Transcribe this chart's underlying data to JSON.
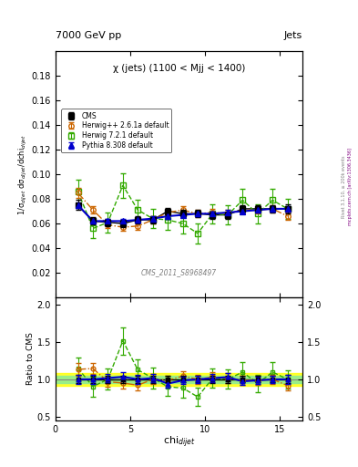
{
  "title_top": "7000 GeV pp",
  "title_right": "Jets",
  "plot_title": "χ (jets) (1100 < Mjj < 1400)",
  "watermark": "CMS_2011_S8968497",
  "right_label": "mcplots.cern.ch [arXiv:1306.3436]",
  "rivet_label": "Rivet 3.1.10, ≥ 200k events",
  "ylabel_main": "1/σ$_{dijet}$ dσ$_{dijet}$/dchi$_{dijet}$",
  "ylabel_ratio": "Ratio to CMS",
  "xlabel": "chi$_{dijet}$",
  "xlim": [
    0,
    16.5
  ],
  "ylim_main": [
    0.0,
    0.2
  ],
  "ylim_ratio": [
    0.45,
    2.1
  ],
  "yticks_main": [
    0.02,
    0.04,
    0.06,
    0.08,
    0.1,
    0.12,
    0.14,
    0.16,
    0.18
  ],
  "yticks_ratio": [
    0.5,
    1.0,
    1.5,
    2.0
  ],
  "cms_x": [
    1.5,
    2.5,
    3.5,
    4.5,
    5.5,
    6.5,
    7.5,
    8.5,
    9.5,
    10.5,
    11.5,
    12.5,
    13.5,
    14.5,
    15.5
  ],
  "cms_y": [
    0.075,
    0.062,
    0.061,
    0.06,
    0.063,
    0.063,
    0.07,
    0.068,
    0.068,
    0.067,
    0.067,
    0.072,
    0.072,
    0.072,
    0.072
  ],
  "cms_yerr": [
    0.004,
    0.003,
    0.003,
    0.003,
    0.003,
    0.003,
    0.003,
    0.003,
    0.003,
    0.003,
    0.003,
    0.003,
    0.003,
    0.003,
    0.004
  ],
  "herwig_pp_x": [
    1.5,
    2.5,
    3.5,
    4.5,
    5.5,
    6.5,
    7.5,
    8.5,
    9.5,
    10.5,
    11.5,
    12.5,
    13.5,
    14.5,
    15.5
  ],
  "herwig_pp_y": [
    0.085,
    0.071,
    0.059,
    0.057,
    0.058,
    0.063,
    0.069,
    0.071,
    0.068,
    0.069,
    0.068,
    0.071,
    0.071,
    0.072,
    0.066
  ],
  "herwig_pp_yerr": [
    0.004,
    0.003,
    0.003,
    0.003,
    0.003,
    0.003,
    0.003,
    0.003,
    0.003,
    0.003,
    0.003,
    0.003,
    0.003,
    0.003,
    0.003
  ],
  "herwig72_x": [
    1.5,
    2.5,
    3.5,
    4.5,
    5.5,
    6.5,
    7.5,
    8.5,
    9.5,
    10.5,
    11.5,
    12.5,
    13.5,
    14.5,
    15.5
  ],
  "herwig72_y": [
    0.086,
    0.056,
    0.061,
    0.091,
    0.071,
    0.064,
    0.063,
    0.06,
    0.052,
    0.068,
    0.067,
    0.079,
    0.068,
    0.079,
    0.072
  ],
  "herwig72_yerr": [
    0.01,
    0.008,
    0.008,
    0.01,
    0.008,
    0.008,
    0.008,
    0.008,
    0.008,
    0.008,
    0.008,
    0.009,
    0.008,
    0.009,
    0.008
  ],
  "pythia_x": [
    1.5,
    2.5,
    3.5,
    4.5,
    5.5,
    6.5,
    7.5,
    8.5,
    9.5,
    10.5,
    11.5,
    12.5,
    13.5,
    14.5,
    15.5
  ],
  "pythia_y": [
    0.075,
    0.062,
    0.062,
    0.062,
    0.063,
    0.064,
    0.066,
    0.067,
    0.068,
    0.068,
    0.069,
    0.07,
    0.071,
    0.072,
    0.072
  ],
  "pythia_yerr": [
    0.002,
    0.002,
    0.002,
    0.002,
    0.002,
    0.002,
    0.002,
    0.002,
    0.002,
    0.002,
    0.002,
    0.002,
    0.002,
    0.002,
    0.002
  ],
  "cms_color": "#000000",
  "herwig_pp_color": "#cc6600",
  "herwig72_color": "#33aa00",
  "pythia_color": "#0000cc",
  "band_green_half": 0.05,
  "band_yellow_half": 0.09,
  "xticks": [
    0,
    5,
    10,
    15
  ]
}
